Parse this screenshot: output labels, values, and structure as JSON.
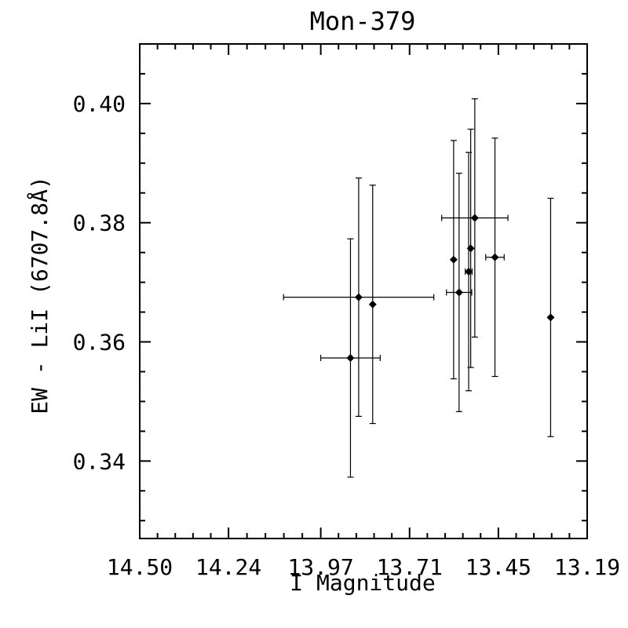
{
  "chart_data": {
    "type": "scatter",
    "title": "Mon-379",
    "xlabel": "I Magnitude",
    "ylabel": "EW - LiI (6707.8Å)",
    "xlim": [
      14.5,
      13.19
    ],
    "ylim": [
      0.327,
      0.41
    ],
    "x_reversed": true,
    "x_ticks": [
      14.5,
      14.24,
      13.97,
      13.71,
      13.45,
      13.19
    ],
    "x_tick_labels": [
      "14.50",
      "14.24",
      "13.97",
      "13.71",
      "13.45",
      "13.19"
    ],
    "y_ticks": [
      0.34,
      0.36,
      0.38,
      0.4
    ],
    "y_tick_labels": [
      "0.34",
      "0.36",
      "0.38",
      "0.40"
    ],
    "x_minor_per_major": 5,
    "y_minor_per_major": 4,
    "grid": false,
    "legend": "none",
    "marker": "diamond",
    "points": [
      {
        "x": 13.883,
        "y": 0.3573,
        "xerr": 0.087,
        "yerr": 0.02
      },
      {
        "x": 13.859,
        "y": 0.3675,
        "xerr": 0.22,
        "yerr": 0.02
      },
      {
        "x": 13.818,
        "y": 0.3663,
        "xerr": 0.0,
        "yerr": 0.02
      },
      {
        "x": 13.581,
        "y": 0.3738,
        "xerr": 0.0,
        "yerr": 0.02
      },
      {
        "x": 13.565,
        "y": 0.3683,
        "xerr": 0.037,
        "yerr": 0.02
      },
      {
        "x": 13.537,
        "y": 0.3718,
        "xerr": 0.01,
        "yerr": 0.02
      },
      {
        "x": 13.531,
        "y": 0.3757,
        "xerr": 0.0,
        "yerr": 0.02
      },
      {
        "x": 13.519,
        "y": 0.3808,
        "xerr": 0.097,
        "yerr": 0.02
      },
      {
        "x": 13.46,
        "y": 0.3742,
        "xerr": 0.027,
        "yerr": 0.02
      },
      {
        "x": 13.297,
        "y": 0.3641,
        "xerr": 0.0,
        "yerr": 0.02
      }
    ]
  }
}
